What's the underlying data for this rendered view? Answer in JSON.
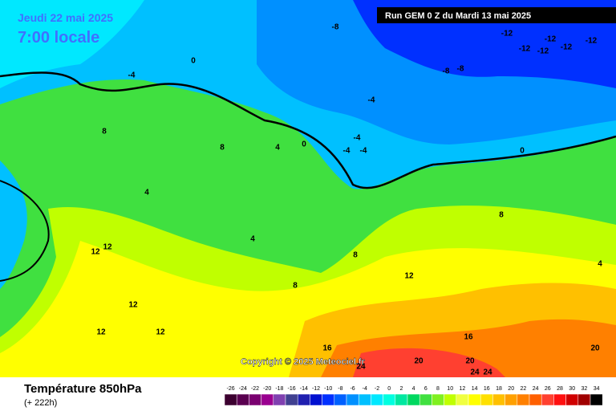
{
  "header": {
    "date": "Jeudi 22 mai 2025",
    "time": "7:00 locale",
    "run": "Run GEM 0 Z du Mardi 13 mai 2025"
  },
  "copyright": "Copyright © 2025 Meteociel.fr",
  "footer": {
    "title": "Température 850hPa",
    "lead": "(+ 222h)"
  },
  "legend": {
    "values": [
      -26,
      -24,
      -22,
      -20,
      -18,
      -16,
      -14,
      -12,
      -10,
      -8,
      -6,
      -4,
      -2,
      0,
      2,
      4,
      6,
      8,
      10,
      12,
      14,
      16,
      18,
      20,
      22,
      24,
      26,
      28,
      30,
      32,
      34
    ],
    "colors": [
      "#3c0030",
      "#5a0050",
      "#7a0070",
      "#9a0090",
      "#8040b0",
      "#404090",
      "#2020b0",
      "#0010d0",
      "#0030ff",
      "#0060ff",
      "#0090ff",
      "#00c0ff",
      "#00e8ff",
      "#00ffe0",
      "#00e8a0",
      "#00d860",
      "#40e040",
      "#80f020",
      "#c0ff00",
      "#f0ff40",
      "#ffff00",
      "#ffe000",
      "#ffc000",
      "#ffa000",
      "#ff8000",
      "#ff6000",
      "#ff4030",
      "#ff1010",
      "#d00000",
      "#a00000",
      "#000000"
    ]
  },
  "contour_labels": [
    -12,
    -12,
    -12,
    -12,
    -12,
    -12,
    -8,
    -8,
    -8,
    -4,
    -4,
    -4,
    -4,
    -4,
    0,
    0,
    0,
    4,
    4,
    4,
    4,
    8,
    8,
    8,
    8,
    8,
    12,
    12,
    12,
    12,
    12,
    12,
    16,
    16,
    20,
    20,
    20,
    24,
    24,
    24
  ]
}
